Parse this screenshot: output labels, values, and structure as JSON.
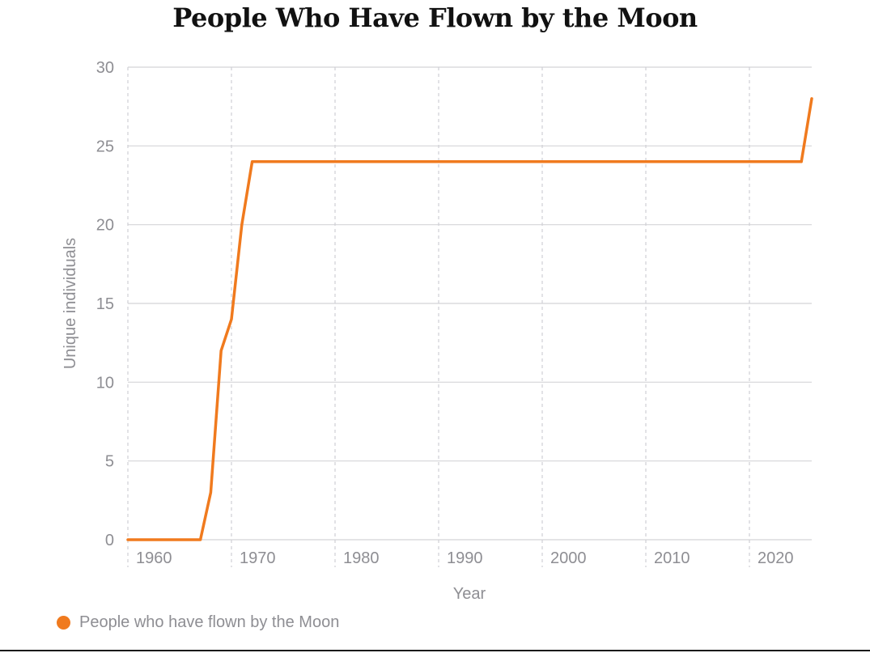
{
  "colors": {
    "series": "#f07a1e",
    "grid": "#d4d4d8",
    "vgrid": "#cfcfd4",
    "text_muted": "#8e8e93"
  },
  "chart_data": {
    "type": "line",
    "title": "People Who Have Flown by the Moon",
    "xlabel": "Year",
    "ylabel": "Unique individuals",
    "xlim": [
      1958,
      2024
    ],
    "ylim": [
      0,
      30
    ],
    "xticks": [
      1960,
      1970,
      1980,
      1990,
      2000,
      2010,
      2020
    ],
    "yticks": [
      0,
      5,
      10,
      15,
      20,
      25,
      30
    ],
    "legend": "bottom-left",
    "series": [
      {
        "name": "People who have flown by the Moon",
        "x": [
          1958,
          1965,
          1966,
          1967,
          1968,
          1969,
          1970,
          2023,
          2024
        ],
        "values": [
          0,
          0,
          3,
          12,
          14,
          20,
          24,
          24,
          28
        ]
      }
    ]
  }
}
